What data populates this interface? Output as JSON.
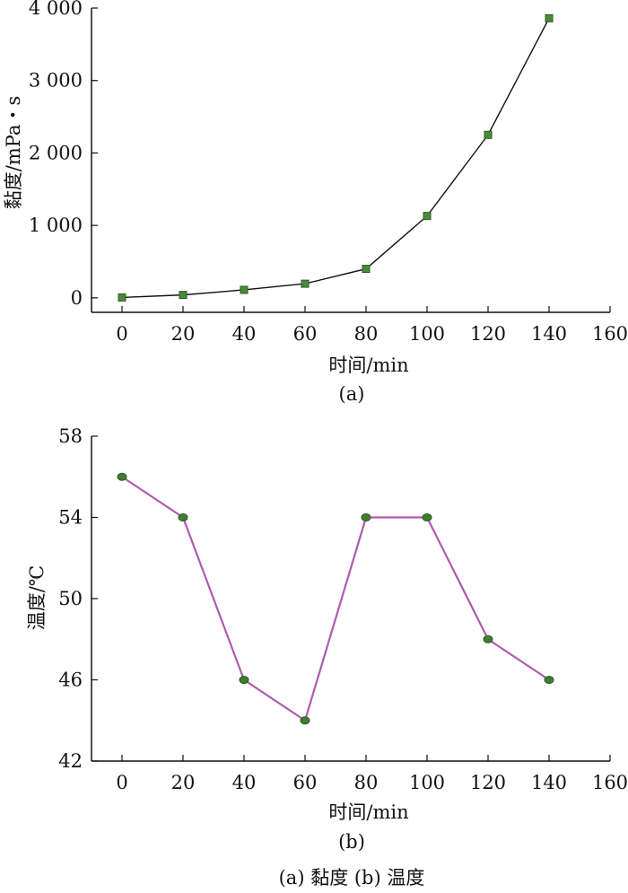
{
  "chart_data": [
    {
      "type": "line",
      "panel_label": "(a)",
      "x": [
        0,
        20,
        40,
        60,
        80,
        100,
        120,
        140
      ],
      "series": [
        {
          "name": "黏度",
          "values": [
            5,
            40,
            110,
            195,
            400,
            1130,
            2250,
            3860
          ],
          "marker": "square"
        }
      ],
      "xlabel": "时间/min",
      "ylabel": "黏度/mPa・s",
      "xlim": [
        -10,
        160
      ],
      "ylim": [
        -200,
        4000
      ],
      "xticks": [
        0,
        20,
        40,
        60,
        80,
        100,
        120,
        140,
        160
      ],
      "xtick_labels": [
        "0",
        "20",
        "40",
        "60",
        "80",
        "100",
        "120",
        "140",
        "160"
      ],
      "yticks": [
        0,
        1000,
        2000,
        3000,
        4000
      ],
      "ytick_labels": [
        "0",
        "1 000",
        "2 000",
        "3 000",
        "4 000"
      ],
      "grid": false,
      "colors": {
        "line": "#111111",
        "marker_fill": "#4a8a3a",
        "marker_edge": "#2f5a24"
      }
    },
    {
      "type": "line",
      "panel_label": "(b)",
      "x": [
        0,
        20,
        40,
        60,
        80,
        100,
        120,
        140
      ],
      "series": [
        {
          "name": "温度",
          "values": [
            56,
            54,
            46,
            44,
            54,
            54,
            48,
            46
          ],
          "marker": "circle"
        }
      ],
      "xlabel": "时间/min",
      "ylabel": "温度/℃",
      "xlim": [
        -10,
        160
      ],
      "ylim": [
        42,
        58
      ],
      "xticks": [
        0,
        20,
        40,
        60,
        80,
        100,
        120,
        140,
        160
      ],
      "xtick_labels": [
        "0",
        "20",
        "40",
        "60",
        "80",
        "100",
        "120",
        "140",
        "160"
      ],
      "yticks": [
        42,
        46,
        50,
        54,
        58
      ],
      "ytick_labels": [
        "42",
        "46",
        "50",
        "54",
        "58"
      ],
      "grid": false,
      "colors": {
        "line": "#b05ab0",
        "marker_fill": "#3f7d32",
        "marker_edge": "#2a5a22"
      }
    }
  ],
  "caption": "(a) 黏度    (b) 温度"
}
